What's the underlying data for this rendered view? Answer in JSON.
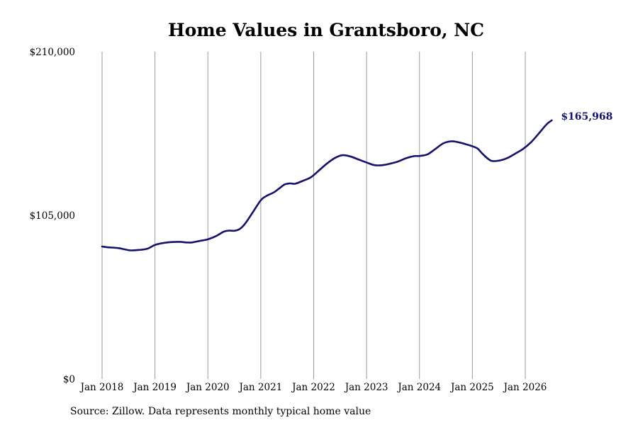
{
  "chart_data": {
    "type": "line",
    "title": "Home Values in Grantsboro, NC",
    "xlabel": "",
    "ylabel": "",
    "ylim": [
      0,
      210000
    ],
    "y_ticks": [
      {
        "value": 0,
        "label": "$0"
      },
      {
        "value": 105000,
        "label": "$105,000"
      },
      {
        "value": 210000,
        "label": "$210,000"
      }
    ],
    "x_ticks": [
      {
        "value": 2018.0,
        "label": "Jan 2018"
      },
      {
        "value": 2019.0,
        "label": "Jan 2019"
      },
      {
        "value": 2020.0,
        "label": "Jan 2020"
      },
      {
        "value": 2021.0,
        "label": "Jan 2021"
      },
      {
        "value": 2022.0,
        "label": "Jan 2022"
      },
      {
        "value": 2023.0,
        "label": "Jan 2023"
      },
      {
        "value": 2024.0,
        "label": "Jan 2024"
      },
      {
        "value": 2025.0,
        "label": "Jan 2025"
      },
      {
        "value": 2026.0,
        "label": "Jan 2026"
      }
    ],
    "xlim": [
      2018.0,
      2026.5
    ],
    "grid": "vertical",
    "line_color": "#15126b",
    "series": [
      {
        "x": [
          2018.0,
          2018.1,
          2018.3,
          2018.45,
          2018.55,
          2018.7,
          2018.85,
          2019.0,
          2019.15,
          2019.3,
          2019.45,
          2019.6,
          2019.7,
          2019.85,
          2020.0,
          2020.15,
          2020.3,
          2020.4,
          2020.5,
          2020.6,
          2020.7,
          2020.85,
          2021.0,
          2021.1,
          2021.25,
          2021.35,
          2021.45,
          2021.55,
          2021.65,
          2021.8,
          2021.95,
          2022.1,
          2022.25,
          2022.4,
          2022.55,
          2022.7,
          2022.85,
          2023.0,
          2023.15,
          2023.3,
          2023.45,
          2023.6,
          2023.75,
          2023.9,
          2024.0,
          2024.15,
          2024.3,
          2024.45,
          2024.6,
          2024.75,
          2024.9,
          2025.0,
          2025.1,
          2025.2,
          2025.35,
          2025.5,
          2025.65,
          2025.8,
          2025.95,
          2026.1,
          2026.25,
          2026.4,
          2026.5
        ],
        "y": [
          85000,
          84500,
          84000,
          83000,
          82500,
          82800,
          83500,
          86000,
          87200,
          87800,
          88000,
          87600,
          87600,
          88600,
          89600,
          91600,
          94500,
          95200,
          95100,
          96200,
          99500,
          107000,
          114700,
          117300,
          119800,
          122300,
          124800,
          125500,
          125300,
          127200,
          129500,
          133800,
          138200,
          141800,
          143600,
          142700,
          140800,
          138900,
          137200,
          137200,
          138200,
          139600,
          141700,
          143000,
          143100,
          144100,
          147600,
          151200,
          152500,
          151800,
          150400,
          149300,
          147800,
          144200,
          140100,
          140100,
          141600,
          144400,
          147400,
          151600,
          157300,
          163300,
          165968
        ]
      }
    ],
    "end_label": "$165,968"
  },
  "source_note": "Source: Zillow. Data represents monthly typical home value"
}
